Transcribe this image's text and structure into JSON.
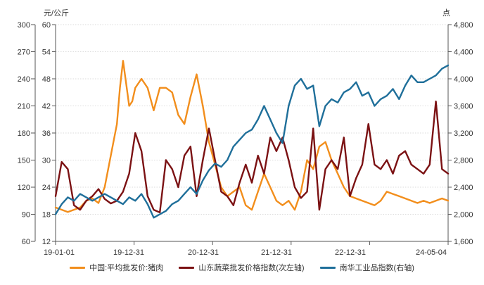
{
  "chart_data": {
    "type": "line",
    "units": {
      "left": "元/公斤",
      "right": "点"
    },
    "x_ticks": [
      "19-01-01",
      "19-12-31",
      "20-12-31",
      "21-12-31",
      "22-12-31",
      "24-05-04"
    ],
    "x_range": [
      0,
      64
    ],
    "axes": {
      "left_outer": {
        "min": 60,
        "max": 300,
        "ticks": [
          "60",
          "90",
          "120",
          "150",
          "180",
          "210",
          "240",
          "270",
          "300"
        ]
      },
      "left_inner": {
        "min": 12,
        "max": 60,
        "ticks": [
          "12",
          "18",
          "24",
          "30",
          "36",
          "42",
          "48",
          "54",
          "60"
        ]
      },
      "right": {
        "min": 1600,
        "max": 4800,
        "ticks": [
          "1,600",
          "2,000",
          "2,400",
          "2,800",
          "3,200",
          "3,600",
          "4,000",
          "4,400",
          "4,800"
        ]
      }
    },
    "series": [
      {
        "name": "中国:平均批发价:猪肉",
        "axis": "left_inner",
        "color": "#F28E1C",
        "x": [
          0,
          2,
          4,
          5,
          6,
          7,
          8,
          9,
          10,
          10.5,
          11,
          11.5,
          12,
          12.5,
          13,
          14,
          15,
          16,
          17,
          18,
          19,
          20,
          21,
          22,
          23,
          24,
          25,
          26,
          27,
          28,
          29,
          30,
          31,
          32,
          33,
          34,
          35,
          36,
          37,
          38,
          39,
          40,
          41,
          42,
          43,
          44,
          45,
          46,
          47,
          48,
          49,
          50,
          51,
          52,
          53,
          54,
          55,
          56,
          57,
          58,
          59,
          60,
          61,
          62,
          63,
          64
        ],
        "y": [
          19.5,
          18.5,
          19.5,
          21,
          21.5,
          20.5,
          24,
          31,
          38,
          46,
          52,
          47,
          42,
          43,
          46,
          48,
          46,
          41,
          46,
          46,
          45,
          40,
          38,
          44,
          49,
          42,
          34,
          29,
          24,
          22,
          23,
          24,
          20,
          19,
          23,
          27,
          24,
          21,
          20,
          21,
          19,
          23,
          30,
          28,
          33,
          34,
          30,
          27,
          24,
          22,
          21.5,
          21,
          20.5,
          20,
          21,
          23,
          22.5,
          22,
          21.5,
          21,
          20.5,
          21,
          20.5,
          21,
          21.5,
          21
        ]
      },
      {
        "name": "山东蔬菜批发价格指数(次左轴)",
        "axis": "left_outer",
        "color": "#7B1113",
        "x": [
          0,
          1,
          2,
          3,
          4,
          5,
          6,
          7,
          8,
          9,
          10,
          11,
          12,
          13,
          14,
          15,
          16,
          17,
          18,
          19,
          20,
          21,
          22,
          23,
          24,
          25,
          26,
          27,
          28,
          29,
          30,
          31,
          32,
          33,
          34,
          35,
          36,
          37,
          38,
          39,
          40,
          41,
          42,
          43,
          44,
          45,
          46,
          47,
          48,
          49,
          50,
          51,
          52,
          53,
          54,
          55,
          56,
          57,
          58,
          59,
          60,
          61,
          62,
          63,
          64
        ],
        "y": [
          110,
          148,
          140,
          100,
          95,
          105,
          110,
          118,
          107,
          102,
          105,
          115,
          135,
          180,
          160,
          110,
          95,
          92,
          150,
          140,
          120,
          155,
          165,
          110,
          150,
          185,
          150,
          115,
          110,
          100,
          125,
          145,
          125,
          155,
          135,
          175,
          160,
          175,
          150,
          120,
          108,
          115,
          185,
          95,
          140,
          150,
          140,
          175,
          110,
          130,
          145,
          190,
          145,
          140,
          150,
          135,
          155,
          160,
          145,
          140,
          135,
          145,
          215,
          140,
          135
        ]
      },
      {
        "name": "南华工业品指数(右轴)",
        "axis": "right",
        "color": "#1F6F9A",
        "x": [
          0,
          1,
          2,
          3,
          4,
          5,
          6,
          7,
          8,
          9,
          10,
          11,
          12,
          13,
          14,
          15,
          16,
          17,
          18,
          19,
          20,
          21,
          22,
          23,
          24,
          25,
          26,
          27,
          28,
          29,
          30,
          31,
          32,
          33,
          34,
          35,
          36,
          37,
          38,
          39,
          40,
          41,
          42,
          43,
          44,
          45,
          46,
          47,
          48,
          49,
          50,
          51,
          52,
          53,
          54,
          55,
          56,
          57,
          58,
          59,
          60,
          61,
          62,
          63,
          64
        ],
        "y": [
          2000,
          2150,
          2250,
          2200,
          2300,
          2250,
          2200,
          2250,
          2300,
          2250,
          2200,
          2150,
          2250,
          2200,
          2300,
          2150,
          1950,
          2000,
          2050,
          2150,
          2200,
          2300,
          2400,
          2300,
          2500,
          2650,
          2750,
          2700,
          2800,
          3000,
          3100,
          3200,
          3250,
          3400,
          3600,
          3400,
          3200,
          3050,
          3600,
          3900,
          4000,
          3850,
          3900,
          3300,
          3600,
          3700,
          3650,
          3800,
          3850,
          3950,
          3750,
          3800,
          3600,
          3700,
          3750,
          3850,
          3700,
          3900,
          4050,
          3950,
          3950,
          4000,
          4050,
          4150,
          4200
        ]
      }
    ],
    "legend": [
      "中国:平均批发价:猪肉",
      "山东蔬菜批发价格指数(次左轴)",
      "南华工业品指数(右轴)"
    ],
    "grid": "horizontal-dotted",
    "legend_position": "bottom"
  }
}
